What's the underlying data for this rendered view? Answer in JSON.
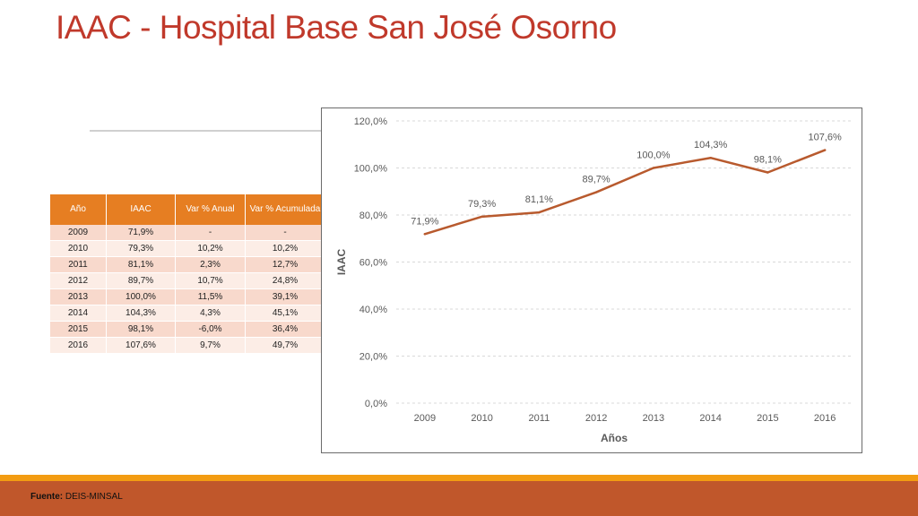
{
  "title": "IAAC - Hospital Base San José Osorno",
  "table": {
    "headers": [
      "Año",
      "IAAC",
      "Var % Anual",
      "Var % Acumulada"
    ],
    "rows": [
      [
        "2009",
        "71,9%",
        "-",
        "-"
      ],
      [
        "2010",
        "79,3%",
        "10,2%",
        "10,2%"
      ],
      [
        "2011",
        "81,1%",
        "2,3%",
        "12,7%"
      ],
      [
        "2012",
        "89,7%",
        "10,7%",
        "24,8%"
      ],
      [
        "2013",
        "100,0%",
        "11,5%",
        "39,1%"
      ],
      [
        "2014",
        "104,3%",
        "4,3%",
        "45,1%"
      ],
      [
        "2015",
        "98,1%",
        "-6,0%",
        "36,4%"
      ],
      [
        "2016",
        "107,6%",
        "9,7%",
        "49,7%"
      ]
    ]
  },
  "chart_data": {
    "type": "line",
    "x": [
      "2009",
      "2010",
      "2011",
      "2012",
      "2013",
      "2014",
      "2015",
      "2016"
    ],
    "series": [
      {
        "values": [
          71.9,
          79.3,
          81.1,
          89.7,
          100.0,
          104.3,
          98.1,
          107.6
        ],
        "labels": [
          "71,9%",
          "79,3%",
          "81,1%",
          "89,7%",
          "100,0%",
          "104,3%",
          "98,1%",
          "107,6%"
        ],
        "color": "#b85a2e"
      }
    ],
    "xlabel": "Años",
    "ylabel": "IAAC",
    "ylim": [
      0,
      120
    ],
    "yticks": [
      "0,0%",
      "20,0%",
      "40,0%",
      "60,0%",
      "80,0%",
      "100,0%",
      "120,0%"
    ],
    "grid": true,
    "legend": "none"
  },
  "footer": {
    "source_label": "Fuente:",
    "source_value": " DEIS-MINSAL"
  }
}
